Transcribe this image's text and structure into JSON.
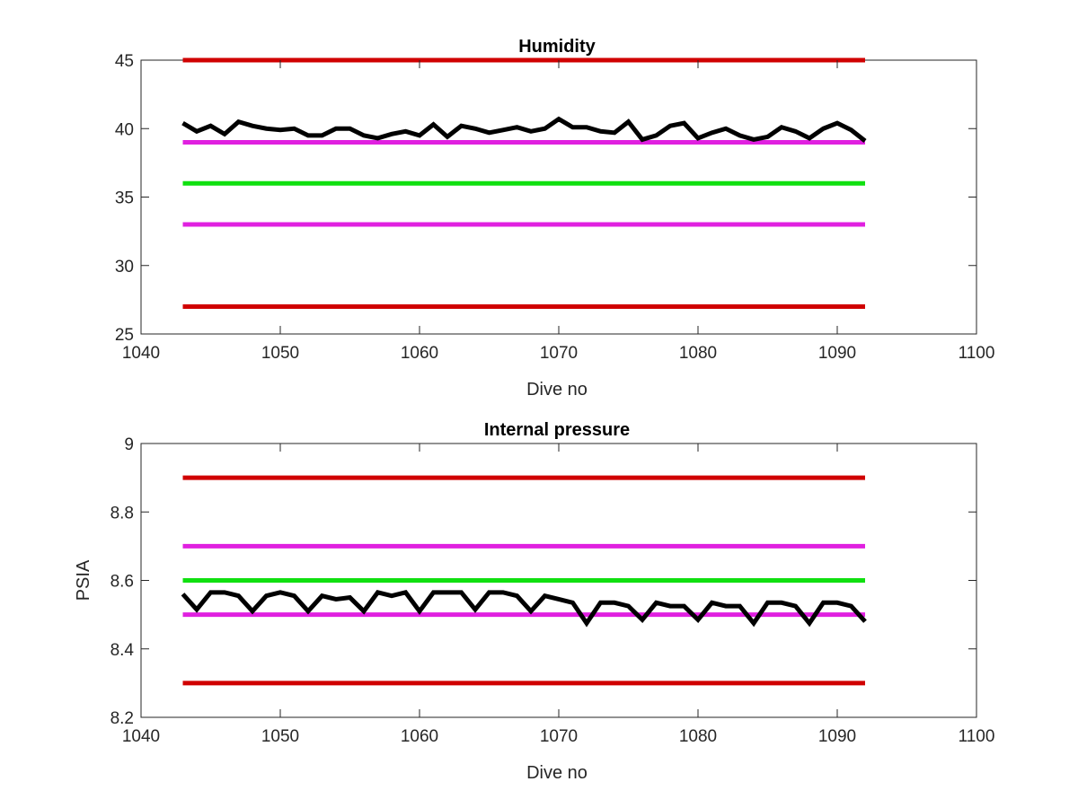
{
  "chart_data": [
    {
      "type": "line",
      "title": "Humidity",
      "xlabel": "Dive no",
      "ylabel": "",
      "xlim": [
        1040,
        1100
      ],
      "ylim": [
        25,
        45
      ],
      "xticks": [
        1040,
        1050,
        1060,
        1070,
        1080,
        1090,
        1100
      ],
      "yticks": [
        25,
        30,
        35,
        40,
        45
      ],
      "grid": false,
      "thresholds": [
        {
          "value": 45,
          "color": "#d00000",
          "x": [
            1043,
            1092
          ]
        },
        {
          "value": 39,
          "color": "#e020e0",
          "x": [
            1043,
            1092
          ]
        },
        {
          "value": 36,
          "color": "#10e010",
          "x": [
            1043,
            1092
          ]
        },
        {
          "value": 33,
          "color": "#e020e0",
          "x": [
            1043,
            1092
          ]
        },
        {
          "value": 27,
          "color": "#d00000",
          "x": [
            1043,
            1092
          ]
        }
      ],
      "series": [
        {
          "color": "#000000",
          "x": [
            1043,
            1044,
            1045,
            1046,
            1047,
            1048,
            1049,
            1050,
            1051,
            1052,
            1053,
            1054,
            1055,
            1056,
            1057,
            1058,
            1059,
            1060,
            1061,
            1062,
            1063,
            1064,
            1065,
            1066,
            1067,
            1068,
            1069,
            1070,
            1071,
            1072,
            1073,
            1074,
            1075,
            1076,
            1077,
            1078,
            1079,
            1080,
            1081,
            1082,
            1083,
            1084,
            1085,
            1086,
            1087,
            1088,
            1089,
            1090,
            1091,
            1092
          ],
          "values": [
            40.4,
            39.8,
            40.2,
            39.6,
            40.5,
            40.2,
            40.0,
            39.9,
            40.0,
            39.5,
            39.5,
            40.0,
            40.0,
            39.5,
            39.3,
            39.6,
            39.8,
            39.5,
            40.3,
            39.4,
            40.2,
            40.0,
            39.7,
            39.9,
            40.1,
            39.8,
            40.0,
            40.7,
            40.1,
            40.1,
            39.8,
            39.7,
            40.5,
            39.2,
            39.5,
            40.2,
            40.4,
            39.3,
            39.7,
            40.0,
            39.5,
            39.2,
            39.4,
            40.1,
            39.8,
            39.3,
            40.0,
            40.4,
            39.9,
            39.1
          ]
        }
      ]
    },
    {
      "type": "line",
      "title": "Internal pressure",
      "xlabel": "Dive no",
      "ylabel": "PSIA",
      "xlim": [
        1040,
        1100
      ],
      "ylim": [
        8.2,
        9
      ],
      "xticks": [
        1040,
        1050,
        1060,
        1070,
        1080,
        1090,
        1100
      ],
      "yticks": [
        8.2,
        8.4,
        8.6,
        8.8,
        9
      ],
      "grid": false,
      "thresholds": [
        {
          "value": 8.9,
          "color": "#d00000",
          "x": [
            1043,
            1092
          ]
        },
        {
          "value": 8.7,
          "color": "#e020e0",
          "x": [
            1043,
            1092
          ]
        },
        {
          "value": 8.6,
          "color": "#10e010",
          "x": [
            1043,
            1092
          ]
        },
        {
          "value": 8.5,
          "color": "#e020e0",
          "x": [
            1043,
            1092
          ]
        },
        {
          "value": 8.3,
          "color": "#d00000",
          "x": [
            1043,
            1092
          ]
        }
      ],
      "series": [
        {
          "color": "#000000",
          "x": [
            1043,
            1044,
            1045,
            1046,
            1047,
            1048,
            1049,
            1050,
            1051,
            1052,
            1053,
            1054,
            1055,
            1056,
            1057,
            1058,
            1059,
            1060,
            1061,
            1062,
            1063,
            1064,
            1065,
            1066,
            1067,
            1068,
            1069,
            1070,
            1071,
            1072,
            1073,
            1074,
            1075,
            1076,
            1077,
            1078,
            1079,
            1080,
            1081,
            1082,
            1083,
            1084,
            1085,
            1086,
            1087,
            1088,
            1089,
            1090,
            1091,
            1092
          ],
          "values": [
            8.56,
            8.515,
            8.565,
            8.565,
            8.555,
            8.51,
            8.555,
            8.565,
            8.555,
            8.51,
            8.555,
            8.545,
            8.55,
            8.51,
            8.565,
            8.555,
            8.565,
            8.51,
            8.565,
            8.565,
            8.565,
            8.515,
            8.565,
            8.565,
            8.555,
            8.51,
            8.555,
            8.545,
            8.535,
            8.475,
            8.535,
            8.535,
            8.525,
            8.485,
            8.535,
            8.525,
            8.525,
            8.485,
            8.535,
            8.525,
            8.525,
            8.475,
            8.535,
            8.535,
            8.525,
            8.475,
            8.535,
            8.535,
            8.525,
            8.48
          ]
        }
      ]
    }
  ]
}
